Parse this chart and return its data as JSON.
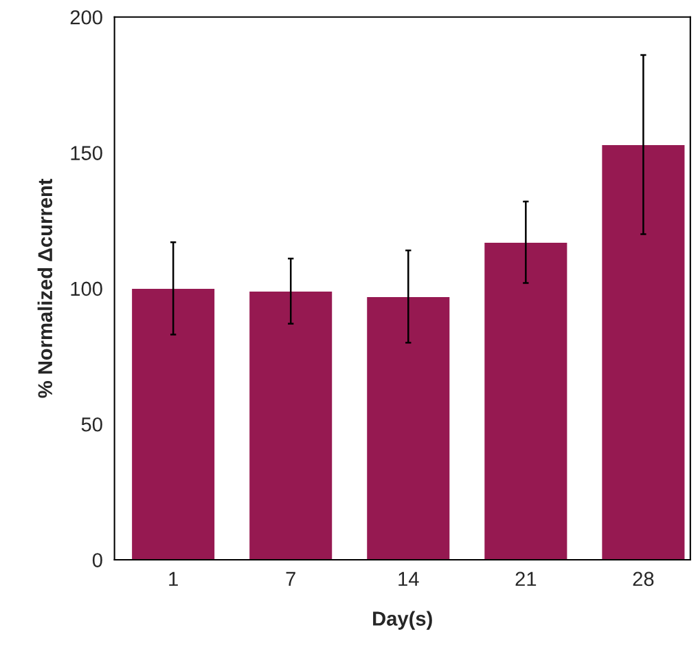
{
  "chart_data": {
    "type": "bar",
    "xlabel": "Day(s)",
    "ylabel": "% Normalized Δcurrent",
    "categories": [
      "1",
      "7",
      "14",
      "21",
      "28"
    ],
    "series": [
      {
        "color": "#961951",
        "values": [
          100,
          99,
          97,
          117,
          153
        ],
        "errors": [
          17,
          12,
          17,
          15,
          33
        ]
      }
    ],
    "ylim": [
      0,
      200
    ],
    "yticks": [
      0,
      50,
      100,
      150,
      200
    ],
    "grid": false
  }
}
